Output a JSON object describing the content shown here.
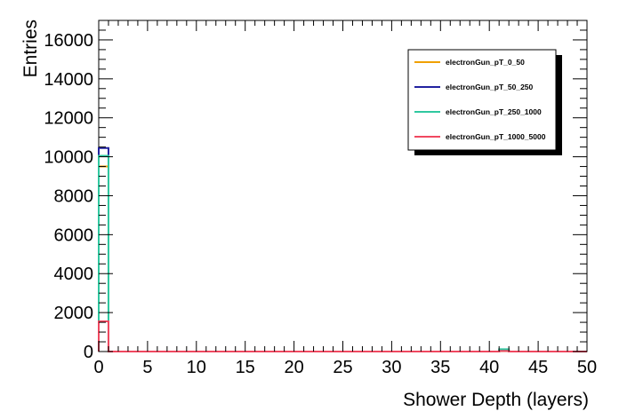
{
  "chart_data": {
    "type": "histogram",
    "xlabel": "Shower Depth (layers)",
    "ylabel": "Entries",
    "xlim": [
      0,
      50
    ],
    "ylim": [
      0,
      17000
    ],
    "x_major_ticks": [
      0,
      5,
      10,
      15,
      20,
      25,
      30,
      35,
      40,
      45,
      50
    ],
    "x_minor_step": 1,
    "y_major_ticks": [
      0,
      2000,
      4000,
      6000,
      8000,
      10000,
      12000,
      14000,
      16000
    ],
    "y_minor_step": 500,
    "bin_width": 1,
    "legend_position": "top-right",
    "series": [
      {
        "name": "electronGun_pT_0_50",
        "color": "#f0a000",
        "bins": [
          [
            0,
            9500
          ],
          [
            41,
            20
          ]
        ]
      },
      {
        "name": "electronGun_pT_50_250",
        "color": "#2222a0",
        "bins": [
          [
            0,
            10450
          ],
          [
            41,
            40
          ]
        ]
      },
      {
        "name": "electronGun_pT_250_1000",
        "color": "#30c8a0",
        "bins": [
          [
            0,
            10050
          ],
          [
            41,
            120
          ]
        ]
      },
      {
        "name": "electronGun_pT_1000_5000",
        "color": "#f04860",
        "bins": [
          [
            0,
            1550
          ],
          [
            41,
            30
          ]
        ]
      }
    ]
  }
}
